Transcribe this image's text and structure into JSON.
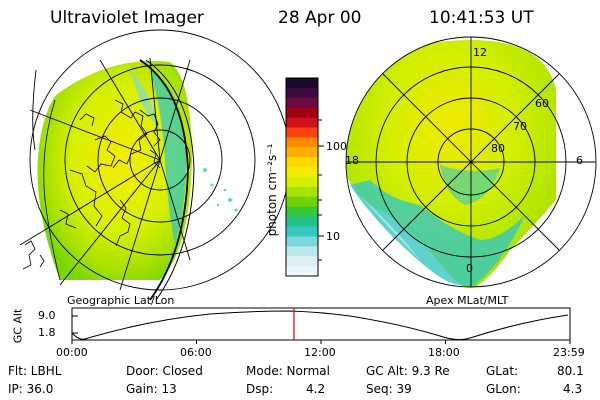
{
  "header": {
    "instrument": "Ultraviolet Imager",
    "date": "28 Apr 00",
    "time": "10:41:53 UT"
  },
  "geo_panel": {
    "label": "Geographic Lat/Lon"
  },
  "apex_panel": {
    "label": "Apex MLat/MLT",
    "mlt_labels": {
      "top": "12",
      "left": "18",
      "right": "6",
      "bottom": "0"
    },
    "lat_labels": [
      "60",
      "70",
      "80"
    ]
  },
  "colorbar": {
    "unit_label": "photon cm⁻²s⁻¹",
    "ticks": [
      "100",
      "10"
    ],
    "colors": [
      "#1a0a2a",
      "#3a0a40",
      "#6a0a40",
      "#a00010",
      "#d0101a",
      "#ff4010",
      "#ff8c00",
      "#ffb000",
      "#ffd800",
      "#f4ec00",
      "#d4ef00",
      "#a8e200",
      "#6fd200",
      "#36c83c",
      "#1fc48a",
      "#36c8c0",
      "#7ad8dc",
      "#b8e8ee",
      "#dcf0f4",
      "#eef7fa"
    ]
  },
  "timeline": {
    "axis_label": "GC Alt",
    "y_ticks": [
      "9.0",
      "1.8"
    ],
    "x_ticks": [
      "00:00",
      "06:00",
      "12:00",
      "18:00",
      "23:59"
    ],
    "current_time_fraction": 0.4457
  },
  "info": {
    "filter": "Flt: LBHL",
    "ip": "IP: 36.0",
    "door": "Door: Closed",
    "gain": "Gain: 13",
    "mode": "Mode: Normal",
    "dsp": "Dsp:",
    "dsp_value": "4.2",
    "gc_alt": "GC Alt: 9.3 Re",
    "seq": "Seq: 39",
    "glat_label": "GLat:",
    "glat_value": "80.1",
    "glon_label": "GLon:",
    "glon_value": "4.3"
  }
}
